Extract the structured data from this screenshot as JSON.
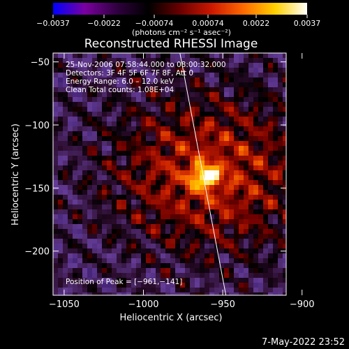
{
  "chart_data": {
    "type": "heatmap",
    "title": "Reconstructed RHESSI Image",
    "xlabel": "Heliocentric X (arcsec)",
    "ylabel": "Heliocentric Y (arcsec)",
    "xlim": [
      -1057,
      -910
    ],
    "ylim": [
      -235,
      -43
    ],
    "x_ticks": [
      {
        "value": -1050,
        "label": "−1050"
      },
      {
        "value": -1000,
        "label": "−1000"
      },
      {
        "value": -950,
        "label": "−950"
      },
      {
        "value": -900,
        "label": "−900"
      }
    ],
    "y_ticks": [
      {
        "value": -50,
        "label": "−50"
      },
      {
        "value": -100,
        "label": "−100"
      },
      {
        "value": -150,
        "label": "−150"
      },
      {
        "value": -200,
        "label": "−200"
      }
    ],
    "grid": false,
    "colorbar": {
      "placement": "top",
      "range": [
        -0.0037,
        0.0037
      ],
      "ticks": [
        "−0.0037",
        "−0.0022",
        "−0.00074",
        "0.00074",
        "0.0022",
        "0.0037"
      ],
      "unit_label": "(photons cm⁻² s⁻¹ asec⁻²)",
      "colormap": [
        "#0000ff",
        "#7a00a0",
        "#300040",
        "#000000",
        "#6a0000",
        "#cc1800",
        "#ff6a00",
        "#ffd000",
        "#ffffff"
      ]
    },
    "annotations": [
      "25-Nov-2006 07:58:44.000 to 08:00:32.000",
      "Detectors: 3F 4F 5F 6F 7F 8F, Att 0",
      "Energy Range: 6.0 – 12.0 keV",
      "Clean      Total counts: 1.08E+04",
      "Position of Peak = [−961,−141]"
    ],
    "peak": {
      "x": -961,
      "y": -141
    },
    "limb_line": [
      {
        "x": -977,
        "y": -43
      },
      {
        "x": -948,
        "y": -235
      }
    ]
  },
  "footer": {
    "date": "7-May-2022 23:52"
  }
}
